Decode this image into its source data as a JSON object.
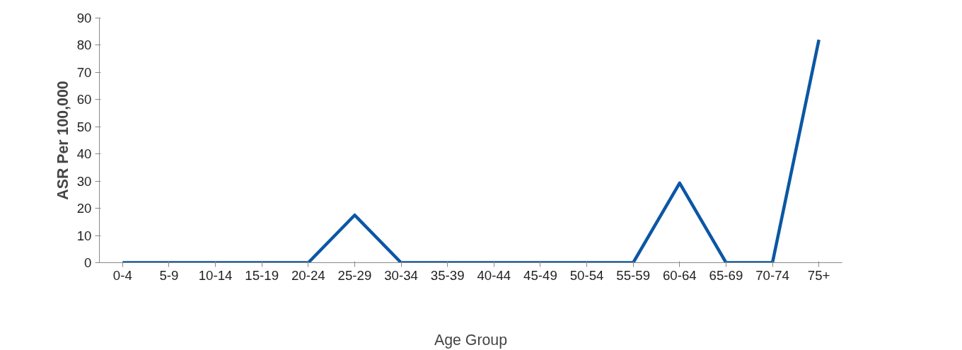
{
  "chart_data": {
    "type": "line",
    "xlabel": "Age Group",
    "ylabel": "ASR Per 100,000",
    "categories": [
      "0-4",
      "5-9",
      "10-14",
      "15-19",
      "20-24",
      "25-29",
      "30-34",
      "35-39",
      "40-44",
      "45-49",
      "50-54",
      "55-59",
      "60-64",
      "65-69",
      "70-74",
      "75+"
    ],
    "series": [
      {
        "color": "#0b57a4",
        "values": [
          0,
          0,
          0,
          0,
          0,
          17.5,
          0,
          0,
          0,
          0,
          0,
          0,
          29.3,
          0,
          0,
          82
        ]
      }
    ],
    "ylim": [
      0,
      90
    ],
    "yticks": [
      0,
      10,
      20,
      30,
      40,
      50,
      60,
      70,
      80,
      90
    ],
    "grid": false,
    "marker": "none",
    "line_style": "solid"
  }
}
